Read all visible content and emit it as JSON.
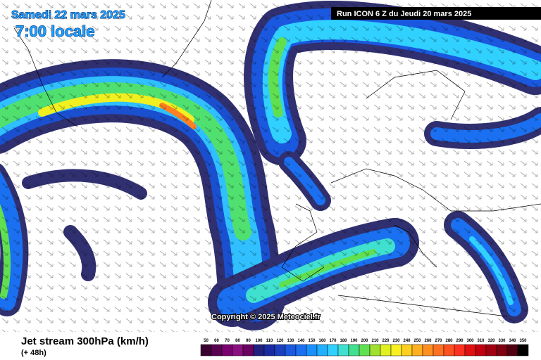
{
  "header": {
    "date": "Samedi 22 mars 2025",
    "time": "7:00 locale",
    "run": "Run ICON 6 Z du Jeudi 20 mars 2025"
  },
  "copyright": "Copyright © 2025 Meteociel.fr",
  "footer": {
    "title": "Jet stream 300hPa (km/h)",
    "lead": "(+ 48h)"
  },
  "legend": {
    "values": [
      50,
      60,
      70,
      80,
      90,
      100,
      110,
      120,
      130,
      140,
      150,
      160,
      170,
      180,
      190,
      200,
      210,
      220,
      230,
      240,
      250,
      260,
      270,
      280,
      290,
      300,
      310,
      320,
      330,
      340,
      350
    ],
    "colors": [
      "#3a0030",
      "#5a0050",
      "#7a0070",
      "#8a1080",
      "#6a0060",
      "#202080",
      "#1a2aa0",
      "#1a40c0",
      "#1a58e0",
      "#1a70f0",
      "#1a90ff",
      "#20b0ff",
      "#30d0ff",
      "#40e0d0",
      "#40e090",
      "#60e050",
      "#a0e030",
      "#e0f020",
      "#f8f020",
      "#ffd020",
      "#ffb020",
      "#ff9020",
      "#ff7020",
      "#ff5020",
      "#ff3020",
      "#e01010",
      "#c00010",
      "#a00010",
      "#800010",
      "#500010",
      "#000000"
    ]
  }
}
